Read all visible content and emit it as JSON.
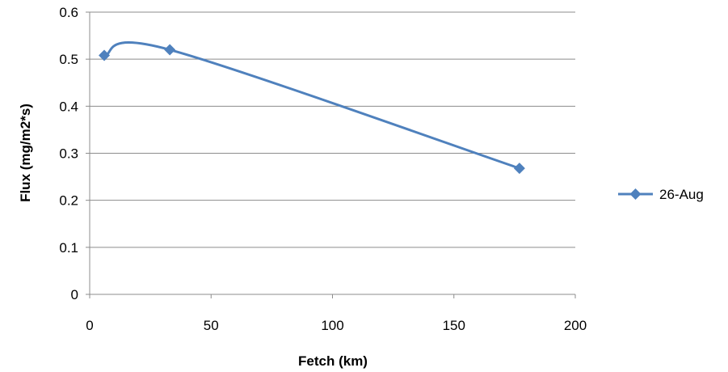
{
  "chart_data": {
    "type": "line",
    "title": "",
    "xlabel": "Fetch (km)",
    "ylabel": "Flux (mg/m2*s)",
    "xlim": [
      0,
      200
    ],
    "ylim": [
      0,
      0.6
    ],
    "x_ticks": [
      "0",
      "50",
      "100",
      "150",
      "200"
    ],
    "y_ticks": [
      "0",
      "0.1",
      "0.2",
      "0.3",
      "0.4",
      "0.5",
      "0.6"
    ],
    "grid": "horizontal",
    "legend": "right",
    "series": [
      {
        "name": "26-Aug",
        "color": "#4f81bd",
        "marker": "diamond",
        "smoothed": true,
        "x": [
          6,
          33,
          177
        ],
        "y": [
          0.508,
          0.52,
          0.268
        ]
      }
    ]
  }
}
